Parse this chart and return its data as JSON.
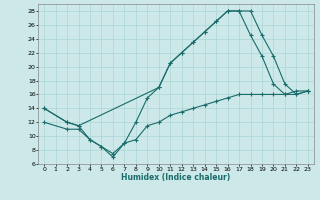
{
  "xlabel": "Humidex (Indice chaleur)",
  "bg_color": "#cce8e8",
  "line_color": "#1a6b6b",
  "grid_color": "#b0d8d8",
  "xlim": [
    -0.5,
    23.5
  ],
  "ylim": [
    6,
    29
  ],
  "xticks": [
    0,
    1,
    2,
    3,
    4,
    5,
    6,
    7,
    8,
    9,
    10,
    11,
    12,
    13,
    14,
    15,
    16,
    17,
    18,
    19,
    20,
    21,
    22,
    23
  ],
  "yticks": [
    6,
    8,
    10,
    12,
    14,
    16,
    18,
    20,
    22,
    24,
    26,
    28
  ],
  "line1_x": [
    0,
    2,
    3,
    4,
    5,
    6,
    7,
    8,
    9,
    10,
    11,
    12,
    13,
    14,
    15,
    16,
    17,
    18,
    19,
    20,
    21,
    22,
    23
  ],
  "line1_y": [
    14,
    12,
    11.5,
    9.5,
    8.5,
    7,
    9,
    12,
    15.5,
    17,
    20.5,
    22,
    23.5,
    25,
    26.5,
    28,
    28,
    28,
    24.5,
    21.5,
    17.5,
    16,
    16.5
  ],
  "line2_x": [
    0,
    2,
    3,
    10,
    11,
    12,
    13,
    14,
    15,
    16,
    17,
    18,
    19,
    20,
    21,
    22,
    23
  ],
  "line2_y": [
    14,
    12,
    11.5,
    17,
    20.5,
    22,
    23.5,
    25,
    26.5,
    28,
    28,
    24.5,
    21.5,
    17.5,
    16,
    16.5,
    16.5
  ],
  "line3_x": [
    0,
    2,
    3,
    4,
    5,
    6,
    7,
    8,
    9,
    10,
    11,
    12,
    13,
    14,
    15,
    16,
    17,
    18,
    19,
    20,
    21,
    22,
    23
  ],
  "line3_y": [
    12,
    11,
    11,
    9.5,
    8.5,
    7.5,
    9,
    9.5,
    11.5,
    12,
    13,
    13.5,
    14,
    14.5,
    15,
    15.5,
    16,
    16,
    16,
    16,
    16,
    16,
    16.5
  ]
}
